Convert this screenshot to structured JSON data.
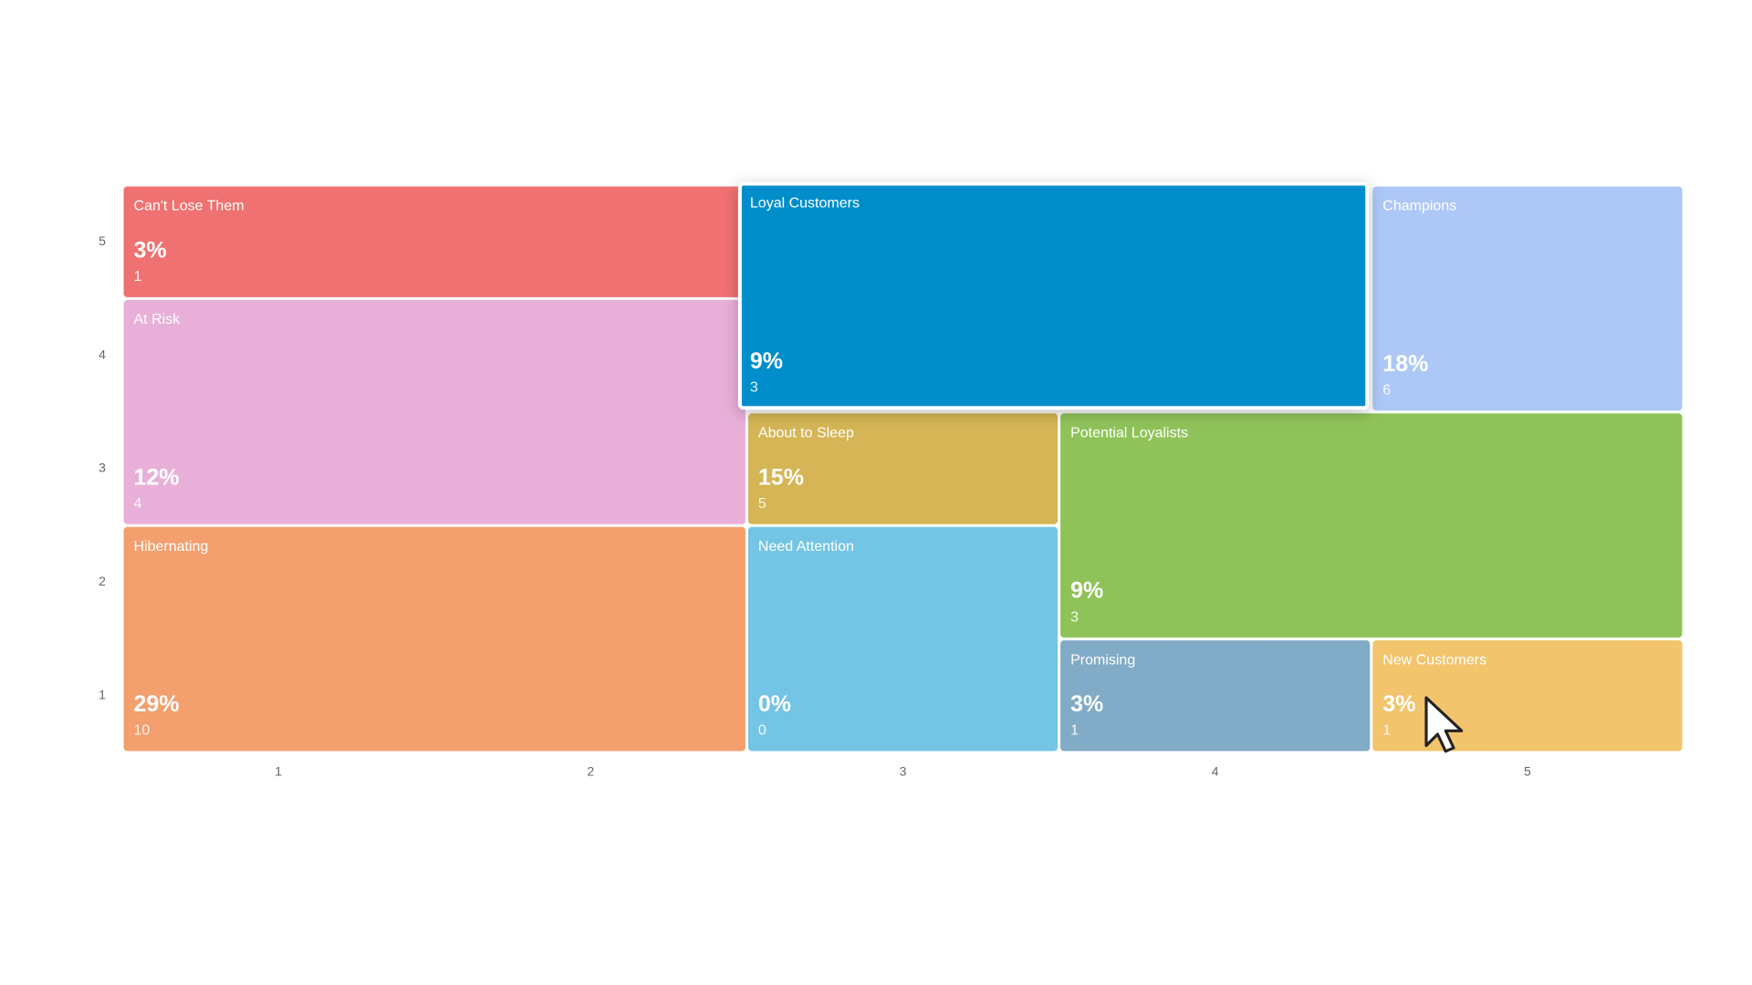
{
  "chart_data": {
    "type": "segment-grid",
    "xticks": [
      1,
      2,
      3,
      4,
      5
    ],
    "yticks": [
      1,
      2,
      3,
      4,
      5
    ],
    "xlim": [
      0.5,
      5.5
    ],
    "ylim": [
      0.5,
      5.5
    ],
    "segments": [
      {
        "name": "Can't Lose Them",
        "color": "#f07171",
        "value": 3,
        "value_label": "3%",
        "count": 1,
        "x": [
          1,
          2
        ],
        "y": [
          5,
          5
        ]
      },
      {
        "name": "At Risk",
        "color": "#e8b0d9",
        "value": 12,
        "value_label": "12%",
        "count": 4,
        "x": [
          1,
          2
        ],
        "y": [
          3,
          4
        ]
      },
      {
        "name": "Hibernating",
        "color": "#f39f6e",
        "value": 29,
        "value_label": "29%",
        "count": 10,
        "x": [
          1,
          2
        ],
        "y": [
          1,
          2
        ]
      },
      {
        "name": "Champions",
        "color": "#adc8f7",
        "value": 18,
        "value_label": "18%",
        "count": 6,
        "x": [
          5,
          5
        ],
        "y": [
          4,
          5
        ]
      },
      {
        "name": "About to Sleep",
        "color": "#d5b555",
        "value": 15,
        "value_label": "15%",
        "count": 5,
        "x": [
          3,
          3
        ],
        "y": [
          3,
          3
        ]
      },
      {
        "name": "Potential Loyalists",
        "color": "#8fc359",
        "value": 9,
        "value_label": "9%",
        "count": 3,
        "x": [
          4,
          5
        ],
        "y": [
          2,
          3
        ]
      },
      {
        "name": "Need Attention",
        "color": "#74c4e6",
        "value": 0,
        "value_label": "0%",
        "count": 0,
        "x": [
          3,
          3
        ],
        "y": [
          1,
          2
        ]
      },
      {
        "name": "Promising",
        "color": "#81abc7",
        "value": 3,
        "value_label": "3%",
        "count": 1,
        "x": [
          4,
          4
        ],
        "y": [
          1,
          1
        ]
      },
      {
        "name": "New Customers",
        "color": "#f2c46b",
        "value": 3,
        "value_label": "3%",
        "count": 1,
        "x": [
          5,
          5
        ],
        "y": [
          1,
          1
        ]
      },
      {
        "name": "Loyal Customers",
        "color": "#028ecb",
        "value": 9,
        "value_label": "9%",
        "count": 3,
        "x": [
          3,
          4
        ],
        "y": [
          4,
          5
        ],
        "highlighted": true
      }
    ]
  }
}
